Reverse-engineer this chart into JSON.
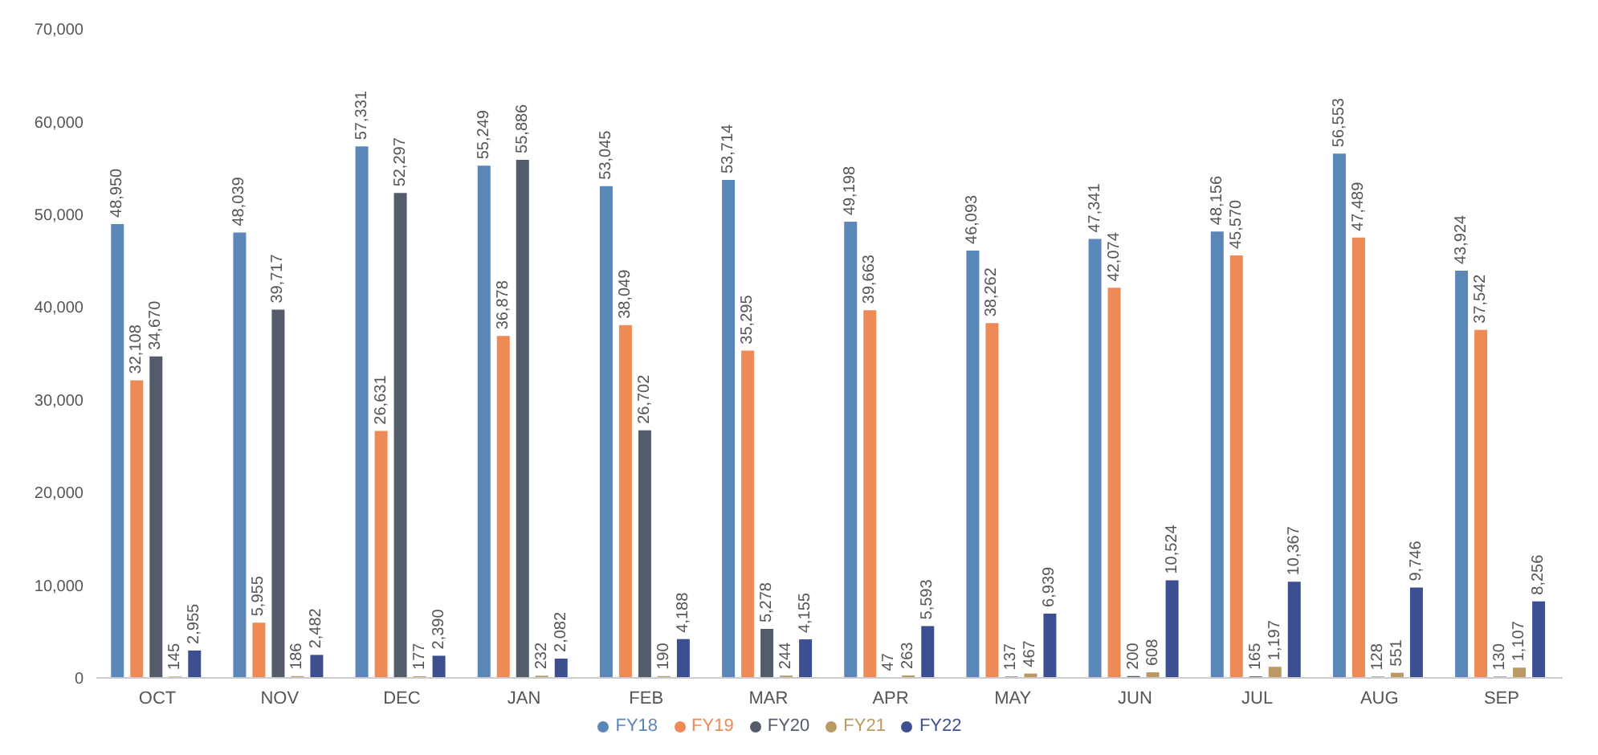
{
  "chart_data": {
    "type": "bar",
    "categories": [
      "OCT",
      "NOV",
      "DEC",
      "JAN",
      "FEB",
      "MAR",
      "APR",
      "MAY",
      "JUN",
      "JUL",
      "AUG",
      "SEP"
    ],
    "series": [
      {
        "name": "FY18",
        "color": "#5b86b8",
        "values": [
          48950,
          48039,
          57331,
          55249,
          53045,
          53714,
          49198,
          46093,
          47341,
          48156,
          56553,
          43924
        ],
        "value_labels": [
          "48,950",
          "48,039",
          "57,331",
          "55,249",
          "53,045",
          "53,714",
          "49,198",
          "46,093",
          "47,341",
          "48,156",
          "56,553",
          "43,924"
        ]
      },
      {
        "name": "FY19",
        "color": "#ed8a55",
        "values": [
          32108,
          5955,
          26631,
          36878,
          38049,
          35295,
          39663,
          38262,
          42074,
          45570,
          47489,
          37542
        ],
        "value_labels": [
          "32,108",
          "5,955",
          "26,631",
          "36,878",
          "38,049",
          "35,295",
          "39,663",
          "38,262",
          "42,074",
          "45,570",
          "47,489",
          "37,542"
        ]
      },
      {
        "name": "FY20",
        "color": "#545b6b",
        "values": [
          34670,
          39717,
          52297,
          55886,
          26702,
          5278,
          47,
          137,
          200,
          165,
          128,
          130
        ],
        "value_labels": [
          "34,670",
          "39,717",
          "52,297",
          "55,886",
          "26,702",
          "5,278",
          "47",
          "137",
          "200",
          "165",
          "128",
          "130"
        ]
      },
      {
        "name": "FY21",
        "color": "#b89a62",
        "values": [
          145,
          186,
          177,
          232,
          190,
          244,
          263,
          467,
          608,
          1197,
          551,
          1107
        ],
        "value_labels": [
          "145",
          "186",
          "177",
          "232",
          "190",
          "244",
          "263",
          "467",
          "608",
          "1,197",
          "551",
          "1,107"
        ]
      },
      {
        "name": "FY22",
        "color": "#3e4f90",
        "values": [
          2955,
          2482,
          2390,
          2082,
          4188,
          4155,
          5593,
          6939,
          10524,
          10367,
          9746,
          8256
        ],
        "value_labels": [
          "2,955",
          "2,482",
          "2,390",
          "2,082",
          "4,188",
          "4,155",
          "5,593",
          "6,939",
          "10,524",
          "10,367",
          "9,746",
          "8,256"
        ]
      }
    ],
    "ylim": [
      0,
      70000
    ],
    "yticks": [
      0,
      {
        "value": 10000,
        "label": "10,000"
      },
      {
        "value": 20000,
        "label": "20,000"
      },
      {
        "value": 30000,
        "label": "30,000"
      },
      {
        "value": 40000,
        "label": "40,000"
      },
      {
        "value": 50000,
        "label": "50,000"
      },
      {
        "value": 60000,
        "label": "60,000"
      },
      {
        "value": 70000,
        "label": "70,000"
      }
    ],
    "legend": "bottom"
  }
}
